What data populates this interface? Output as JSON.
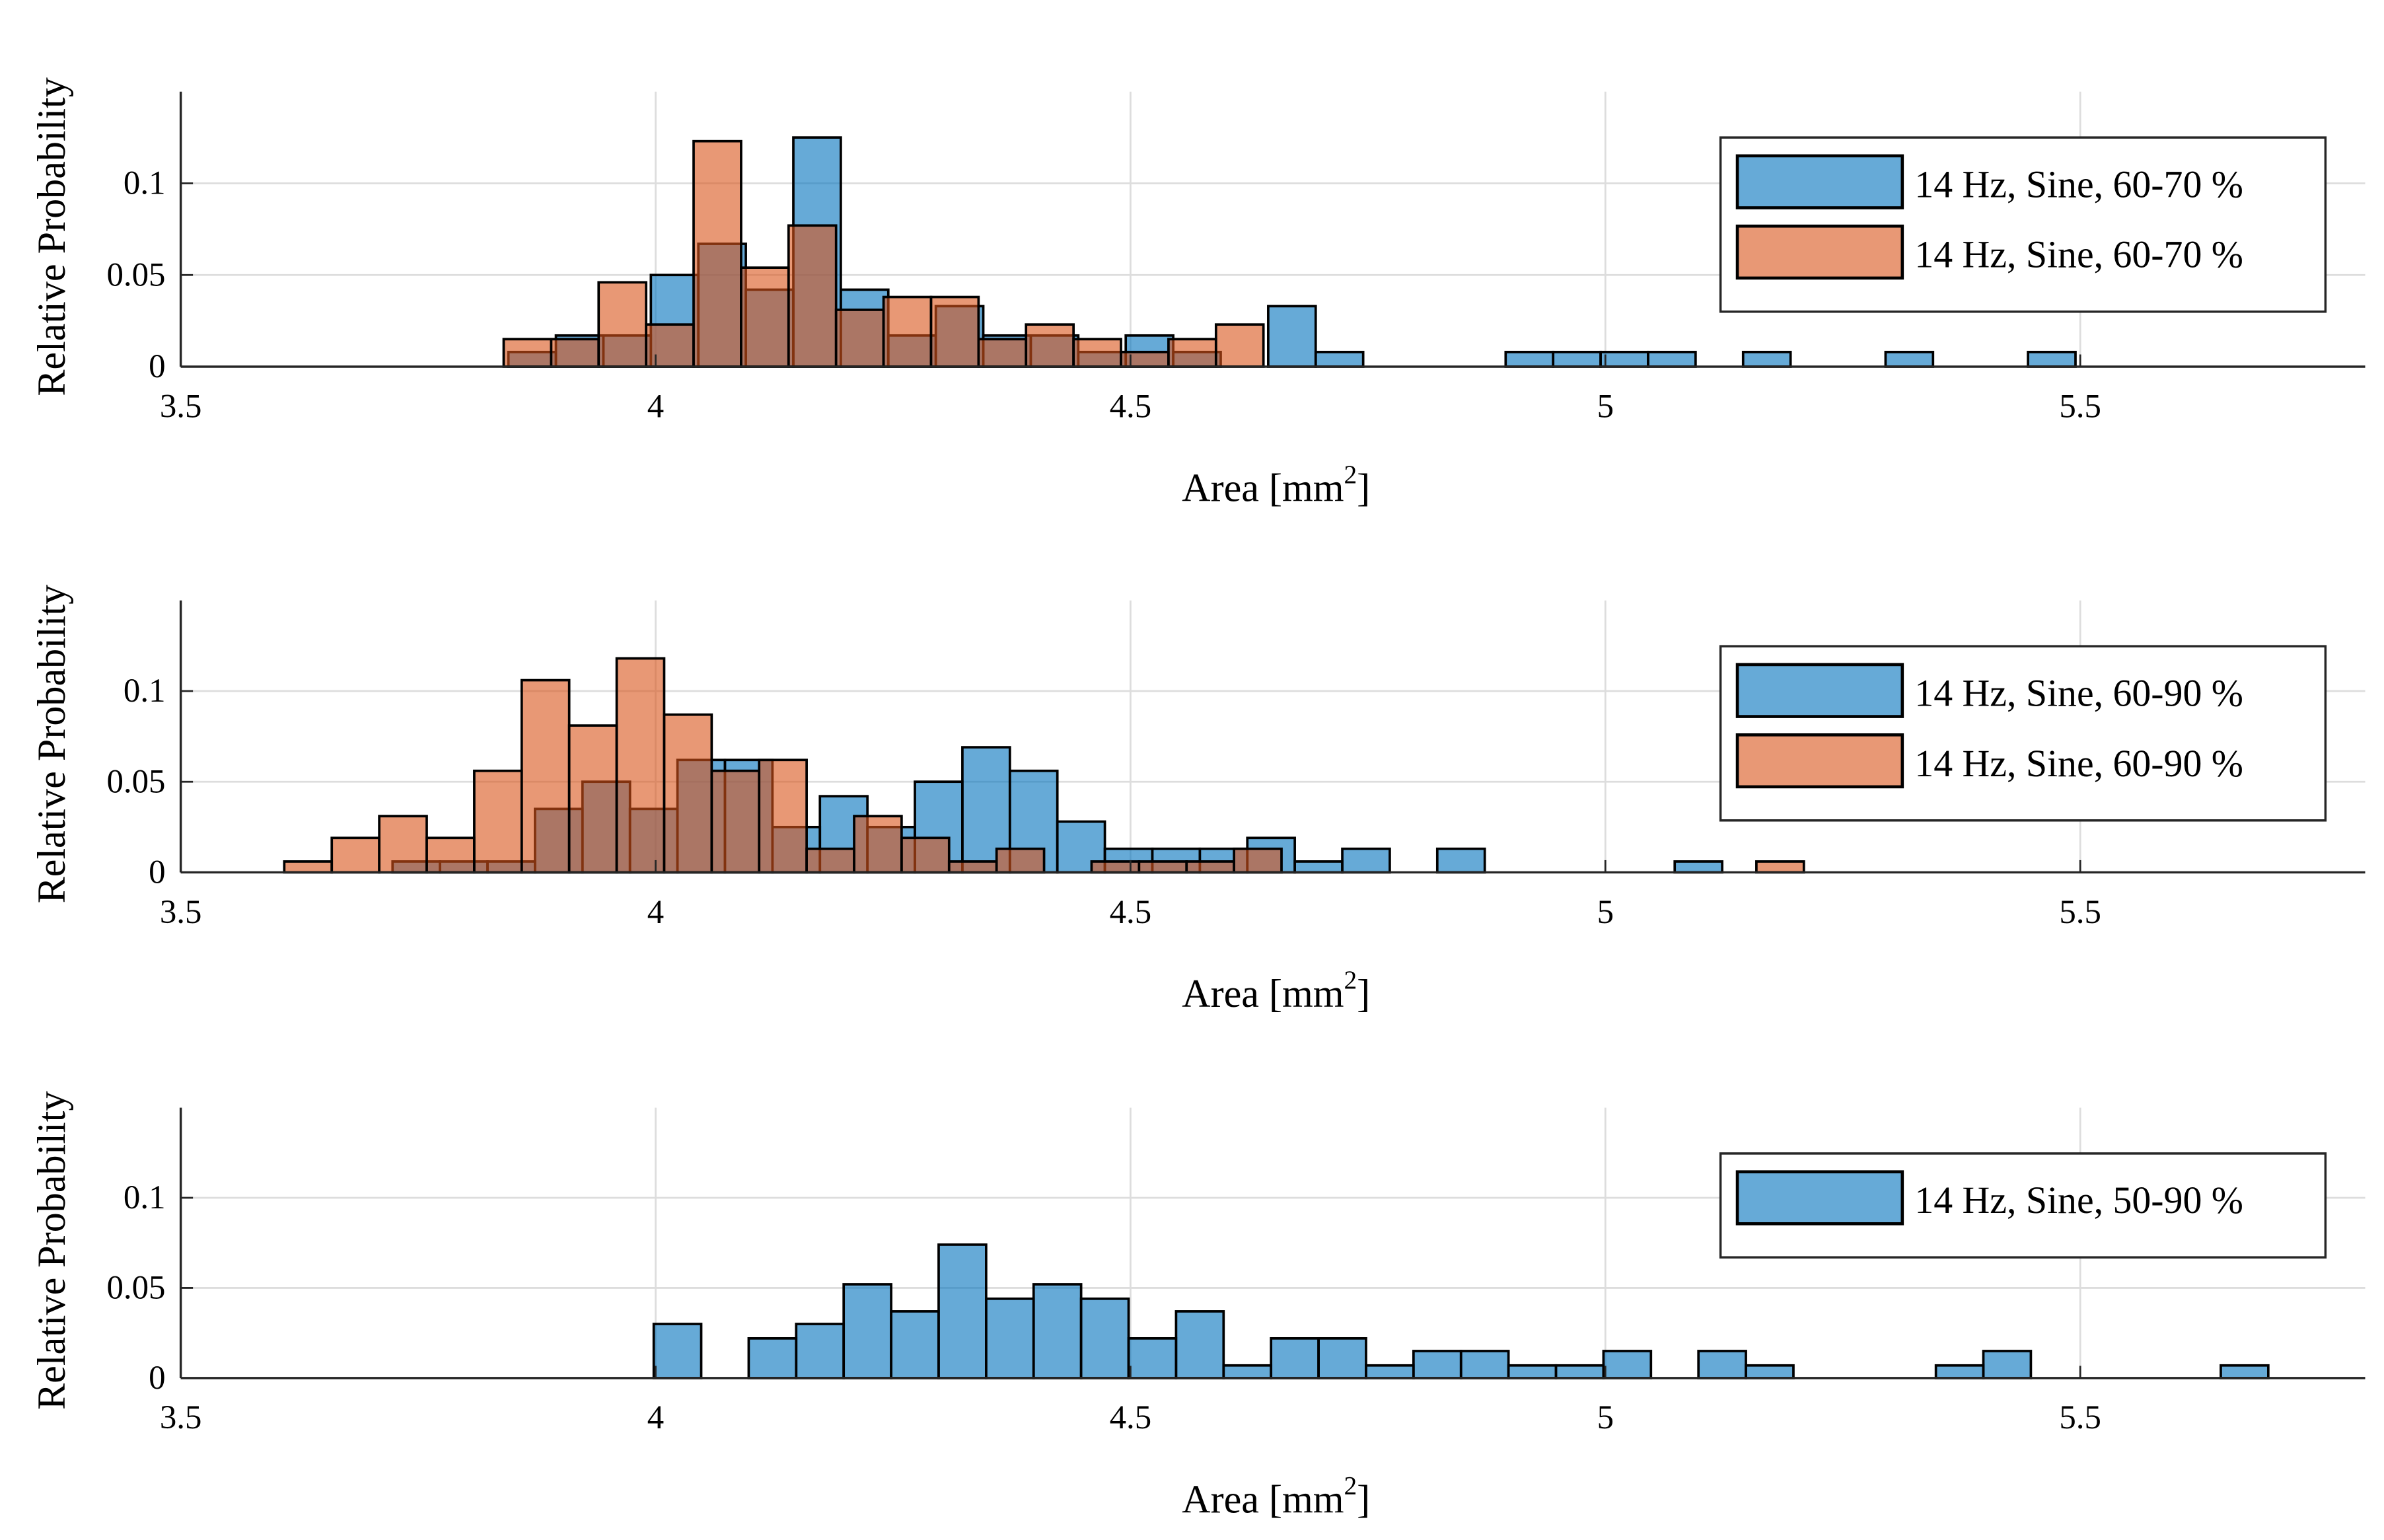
{
  "colors": {
    "series_a": "#0072BD",
    "series_b": "#D95319",
    "alpha": 0.6,
    "edge": "#000000",
    "grid": "#dddddd"
  },
  "chart_data": [
    {
      "type": "bar",
      "subtype": "histogram",
      "xlabel": "Area [mm",
      "xlabel_sup": "2",
      "xlabel_end": "]",
      "ylabel": "Relative Probability",
      "xlim": [
        3.5,
        5.8
      ],
      "ylim": [
        0,
        0.15
      ],
      "xticks": [
        "3.5",
        "4",
        "4.5",
        "5",
        "5.5"
      ],
      "yticks": [
        "0",
        "0.05",
        "0.1"
      ],
      "grid": true,
      "legend_position": "top-right",
      "series": [
        {
          "name": "14 Hz, Sine, 60-70 %",
          "color": "blue",
          "bin_start": 3.845,
          "bin_width": 0.05,
          "values": [
            0.008,
            0.017,
            0.017,
            0.05,
            0.067,
            0.042,
            0.125,
            0.042,
            0.017,
            0.033,
            0.017,
            0.017,
            0.008,
            0.017,
            0.008,
            0,
            0.033,
            0.008,
            0,
            0,
            0,
            0.008,
            0.008,
            0.008,
            0.008,
            0,
            0.008,
            0,
            0,
            0.008,
            0,
            0,
            0.008
          ]
        },
        {
          "name": "14 Hz, Sine, 60-70 %",
          "color": "orange",
          "bin_start": 3.84,
          "bin_width": 0.05,
          "values": [
            0.015,
            0.015,
            0.046,
            0.023,
            0.123,
            0.054,
            0.077,
            0.031,
            0.038,
            0.038,
            0.015,
            0.023,
            0.015,
            0.008,
            0.015,
            0.023
          ]
        }
      ]
    },
    {
      "type": "bar",
      "subtype": "histogram",
      "xlabel": "Area [mm",
      "xlabel_sup": "2",
      "xlabel_end": "]",
      "ylabel": "Relative Probability",
      "xlim": [
        3.5,
        5.8
      ],
      "ylim": [
        0,
        0.15
      ],
      "xticks": [
        "3.5",
        "4",
        "4.5",
        "5",
        "5.5"
      ],
      "yticks": [
        "0",
        "0.05",
        "0.1"
      ],
      "grid": true,
      "legend_position": "top-right",
      "series": [
        {
          "name": "14 Hz, Sine, 60-90 %",
          "color": "blue",
          "bin_start": 3.723,
          "bin_width": 0.05,
          "values": [
            0.006,
            0.006,
            0.006,
            0.035,
            0.05,
            0.035,
            0.062,
            0.062,
            0.025,
            0.042,
            0.025,
            0.05,
            0.069,
            0.056,
            0.028,
            0.013,
            0.013,
            0.013,
            0.019,
            0.006,
            0.013,
            0,
            0.013,
            0,
            0,
            0,
            0,
            0.006
          ]
        },
        {
          "name": "14 Hz, Sine, 60-90 %",
          "color": "orange",
          "bin_start": 3.609,
          "bin_width": 0.05,
          "values": [
            0.006,
            0.019,
            0.031,
            0.019,
            0.056,
            0.106,
            0.081,
            0.118,
            0.087,
            0.056,
            0.062,
            0.013,
            0.031,
            0.019,
            0.006,
            0.013,
            0,
            0.006,
            0.006,
            0.006,
            0.013,
            0,
            0,
            0,
            0,
            0,
            0,
            0,
            0,
            0,
            0,
            0.006
          ]
        }
      ]
    },
    {
      "type": "bar",
      "subtype": "histogram",
      "xlabel": "Area [mm",
      "xlabel_sup": "2",
      "xlabel_end": "]",
      "ylabel": "Relative Probability",
      "xlim": [
        3.5,
        5.8
      ],
      "ylim": [
        0,
        0.15
      ],
      "xticks": [
        "3.5",
        "4",
        "4.5",
        "5",
        "5.5"
      ],
      "yticks": [
        "0",
        "0.05",
        "0.1"
      ],
      "grid": true,
      "legend_position": "top-right",
      "series": [
        {
          "name": "14 Hz, Sine, 50-90 %",
          "color": "blue",
          "bin_start": 3.998,
          "bin_width": 0.05,
          "values": [
            0.03,
            0,
            0.022,
            0.03,
            0.052,
            0.037,
            0.074,
            0.044,
            0.052,
            0.044,
            0.022,
            0.037,
            0.007,
            0.022,
            0.022,
            0.007,
            0.015,
            0.015,
            0.007,
            0.007,
            0.015,
            0,
            0.015,
            0.007,
            0,
            0,
            0,
            0.007,
            0.015,
            0,
            0,
            0,
            0,
            0.007
          ]
        }
      ]
    }
  ]
}
